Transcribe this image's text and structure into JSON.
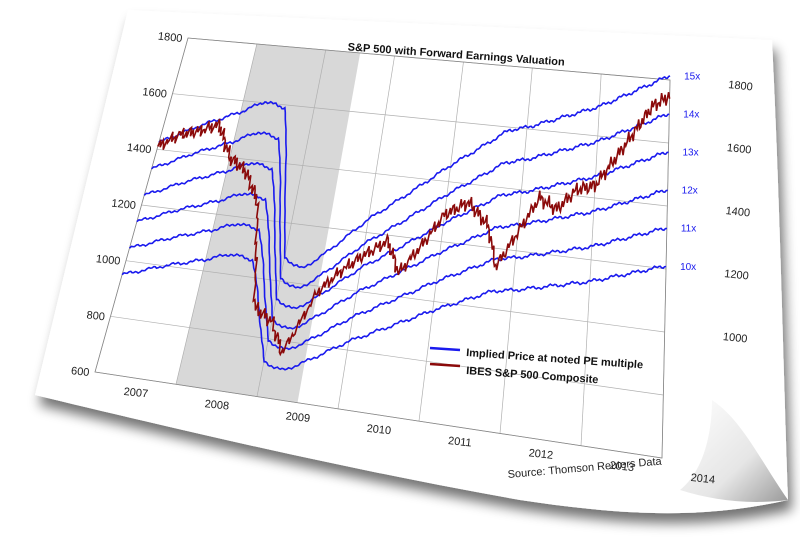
{
  "chart_data": {
    "type": "line",
    "title": "S&P 500 with Forward Earnings Valuation",
    "source": "Source: Thomson Reuters Data",
    "x_labels": [
      "2007",
      "2008",
      "2009",
      "2010",
      "2011",
      "2012",
      "2013",
      "2014"
    ],
    "xlim": [
      2007.0,
      2014.0
    ],
    "recession": [
      2008.0,
      2009.5
    ],
    "left_axis": {
      "ticks": [
        "600",
        "800",
        "1000",
        "1200",
        "1400",
        "1600",
        "1800"
      ],
      "ylim": [
        600,
        1800
      ]
    },
    "right_axis": {
      "ticks": [
        "1000",
        "1200",
        "1400",
        "1600",
        "1800"
      ],
      "ylim": [
        600,
        1800
      ]
    },
    "legend": {
      "placement": "bottom-right",
      "entries": [
        "Implied Price at noted PE multiple",
        "IBES S&P 500 Composite"
      ]
    },
    "colors": {
      "implied": "#1a1aee",
      "composite": "#8b0a0a",
      "recession": "#d4d4d4",
      "grid": "#b0b0b0"
    },
    "multiples": [
      {
        "label": "10x",
        "pe": 10
      },
      {
        "label": "11x",
        "pe": 11
      },
      {
        "label": "12x",
        "pe": 12
      },
      {
        "label": "13x",
        "pe": 13
      },
      {
        "label": "14x",
        "pe": 14
      },
      {
        "label": "15x",
        "pe": 15
      }
    ],
    "forward_eps": {
      "x": [
        2007.0,
        2007.5,
        2008.0,
        2008.3,
        2008.6,
        2008.75,
        2009.0,
        2009.25,
        2009.5,
        2010.0,
        2010.5,
        2011.0,
        2011.5,
        2011.75,
        2012.0,
        2012.5,
        2013.0,
        2013.5,
        2014.0
      ],
      "y": [
        95,
        100,
        104,
        107,
        106,
        95,
        72,
        70,
        74,
        83,
        90,
        97,
        103,
        106,
        107,
        110,
        113,
        117,
        121
      ]
    },
    "composite": {
      "x": [
        2007.0,
        2007.25,
        2007.5,
        2007.75,
        2008.0,
        2008.25,
        2008.5,
        2008.75,
        2009.0,
        2009.2,
        2009.5,
        2009.75,
        2010.0,
        2010.3,
        2010.5,
        2010.75,
        2011.0,
        2011.3,
        2011.6,
        2011.75,
        2012.0,
        2012.25,
        2012.5,
        2012.75,
        2013.0,
        2013.25,
        2013.5,
        2013.75,
        2014.0
      ],
      "y": [
        1410,
        1460,
        1480,
        1510,
        1400,
        1360,
        1260,
        900,
        860,
        760,
        980,
        1060,
        1120,
        1180,
        1080,
        1180,
        1290,
        1340,
        1270,
        1140,
        1260,
        1380,
        1350,
        1420,
        1440,
        1530,
        1620,
        1710,
        1750
      ]
    }
  }
}
